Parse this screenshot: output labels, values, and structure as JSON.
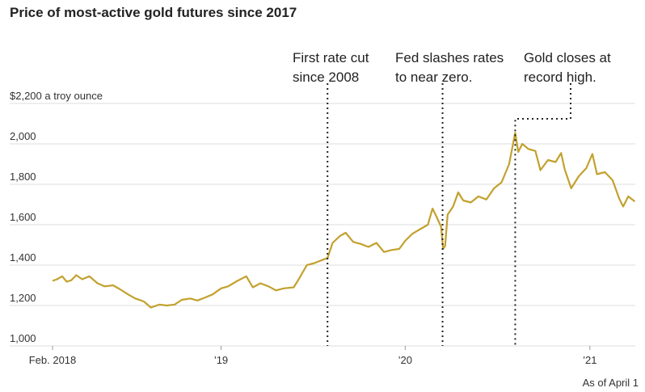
{
  "chart_data": {
    "type": "line",
    "title": "Price of most-active gold futures since 2017",
    "ylabel": "$2,200 a troy ounce",
    "ylim": [
      1000,
      2200
    ],
    "yticks": [
      {
        "value": 2200,
        "label": "$2,200 a troy ounce"
      },
      {
        "value": 2000,
        "label": "2,000"
      },
      {
        "value": 1800,
        "label": "1,800"
      },
      {
        "value": 1600,
        "label": "1,600"
      },
      {
        "value": 1400,
        "label": "1,400"
      },
      {
        "value": 1200,
        "label": "1,200"
      },
      {
        "value": 1000,
        "label": "1,000"
      }
    ],
    "xlim": [
      "2018-02-01",
      "2021-04-01"
    ],
    "xticks": [
      {
        "date": "2018-02-01",
        "label": "Feb. 2018"
      },
      {
        "date": "2019-01-01",
        "label": "’19"
      },
      {
        "date": "2020-01-01",
        "label": "’20"
      },
      {
        "date": "2021-01-01",
        "label": "’21"
      }
    ],
    "grid": true,
    "note": "As of April 1",
    "line_color": "#c3a12e",
    "series": [
      {
        "points": [
          [
            "2018-02-01",
            1322
          ],
          [
            "2018-02-10",
            1330
          ],
          [
            "2018-02-20",
            1345
          ],
          [
            "2018-03-01",
            1318
          ],
          [
            "2018-03-10",
            1325
          ],
          [
            "2018-03-20",
            1350
          ],
          [
            "2018-04-01",
            1330
          ],
          [
            "2018-04-15",
            1345
          ],
          [
            "2018-05-01",
            1310
          ],
          [
            "2018-05-15",
            1295
          ],
          [
            "2018-06-01",
            1300
          ],
          [
            "2018-06-15",
            1280
          ],
          [
            "2018-07-01",
            1255
          ],
          [
            "2018-07-15",
            1235
          ],
          [
            "2018-08-01",
            1220
          ],
          [
            "2018-08-15",
            1190
          ],
          [
            "2018-09-01",
            1205
          ],
          [
            "2018-09-15",
            1200
          ],
          [
            "2018-10-01",
            1205
          ],
          [
            "2018-10-15",
            1228
          ],
          [
            "2018-11-01",
            1235
          ],
          [
            "2018-11-15",
            1225
          ],
          [
            "2018-12-01",
            1240
          ],
          [
            "2018-12-15",
            1255
          ],
          [
            "2019-01-01",
            1285
          ],
          [
            "2019-01-15",
            1295
          ],
          [
            "2019-02-01",
            1320
          ],
          [
            "2019-02-20",
            1345
          ],
          [
            "2019-03-05",
            1290
          ],
          [
            "2019-03-20",
            1310
          ],
          [
            "2019-04-05",
            1295
          ],
          [
            "2019-04-20",
            1275
          ],
          [
            "2019-05-05",
            1285
          ],
          [
            "2019-05-25",
            1290
          ],
          [
            "2019-06-05",
            1335
          ],
          [
            "2019-06-20",
            1400
          ],
          [
            "2019-07-05",
            1410
          ],
          [
            "2019-07-20",
            1425
          ],
          [
            "2019-07-31",
            1435
          ],
          [
            "2019-08-10",
            1510
          ],
          [
            "2019-08-25",
            1545
          ],
          [
            "2019-09-05",
            1560
          ],
          [
            "2019-09-20",
            1515
          ],
          [
            "2019-10-05",
            1505
          ],
          [
            "2019-10-20",
            1490
          ],
          [
            "2019-11-05",
            1510
          ],
          [
            "2019-11-20",
            1465
          ],
          [
            "2019-12-05",
            1475
          ],
          [
            "2019-12-20",
            1480
          ],
          [
            "2020-01-01",
            1520
          ],
          [
            "2020-01-15",
            1555
          ],
          [
            "2020-02-01",
            1580
          ],
          [
            "2020-02-15",
            1600
          ],
          [
            "2020-02-24",
            1680
          ],
          [
            "2020-03-03",
            1640
          ],
          [
            "2020-03-12",
            1590
          ],
          [
            "2020-03-16",
            1480
          ],
          [
            "2020-03-20",
            1495
          ],
          [
            "2020-03-25",
            1650
          ],
          [
            "2020-04-05",
            1690
          ],
          [
            "2020-04-15",
            1760
          ],
          [
            "2020-04-25",
            1720
          ],
          [
            "2020-05-10",
            1710
          ],
          [
            "2020-05-25",
            1740
          ],
          [
            "2020-06-10",
            1725
          ],
          [
            "2020-06-25",
            1780
          ],
          [
            "2020-07-10",
            1810
          ],
          [
            "2020-07-25",
            1900
          ],
          [
            "2020-08-06",
            2055
          ],
          [
            "2020-08-12",
            1960
          ],
          [
            "2020-08-20",
            2000
          ],
          [
            "2020-09-01",
            1975
          ],
          [
            "2020-09-15",
            1965
          ],
          [
            "2020-09-25",
            1870
          ],
          [
            "2020-10-10",
            1920
          ],
          [
            "2020-10-25",
            1910
          ],
          [
            "2020-11-05",
            1955
          ],
          [
            "2020-11-12",
            1875
          ],
          [
            "2020-11-25",
            1780
          ],
          [
            "2020-12-10",
            1840
          ],
          [
            "2020-12-25",
            1880
          ],
          [
            "2021-01-06",
            1950
          ],
          [
            "2021-01-15",
            1850
          ],
          [
            "2021-01-31",
            1860
          ],
          [
            "2021-02-15",
            1820
          ],
          [
            "2021-02-28",
            1730
          ],
          [
            "2021-03-08",
            1690
          ],
          [
            "2021-03-18",
            1740
          ],
          [
            "2021-03-31",
            1715
          ]
        ]
      }
    ],
    "annotations": [
      {
        "date": "2019-07-31",
        "value": 1430,
        "lines": [
          "First rate cut",
          "since 2008"
        ]
      },
      {
        "date": "2020-03-15",
        "value": 1510,
        "lines": [
          "Fed slashes rates",
          "to near zero."
        ]
      },
      {
        "date": "2020-08-06",
        "value": 2055,
        "lines": [
          "Gold closes at",
          "record high."
        ]
      }
    ]
  }
}
